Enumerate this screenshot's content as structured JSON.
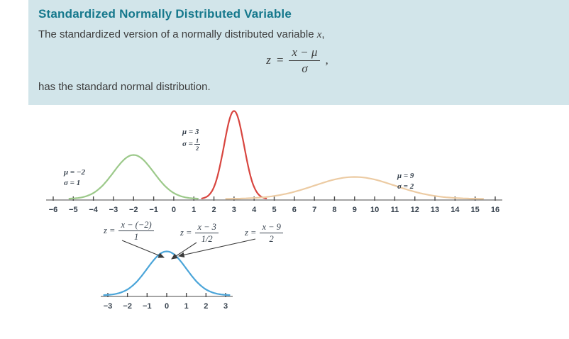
{
  "definition_box": {
    "title": "Standardized Normally Distributed Variable",
    "intro_text": "The standardized version of a normally distributed variable ",
    "intro_var": "x",
    "intro_punct": ",",
    "formula": {
      "lhs": "z",
      "eq": "=",
      "num": "x − μ",
      "den": "σ",
      "punct": ","
    },
    "outro_text": "has the standard normal distribution.",
    "title_color": "#15788c",
    "bg_color": "#d2e5ea"
  },
  "figure": {
    "main_axis": {
      "min": -6,
      "max": 16,
      "tick_labels": [
        "−6",
        "−5",
        "−4",
        "−3",
        "−2",
        "−1",
        "0",
        "1",
        "2",
        "3",
        "4",
        "5",
        "6",
        "7",
        "8",
        "9",
        "10",
        "11",
        "12",
        "13",
        "14",
        "15",
        "16"
      ]
    },
    "standard_axis": {
      "min": -3,
      "max": 3,
      "tick_labels": [
        "−3",
        "−2",
        "−1",
        "0",
        "1",
        "2",
        "3"
      ]
    },
    "curves": [
      {
        "name": "normal-curve-mu-neg2-sigma-1",
        "mu": -2,
        "sigma": 1,
        "color": "#9cc98a",
        "axis": "main"
      },
      {
        "name": "normal-curve-mu-3-sigma-half",
        "mu": 3,
        "sigma": 0.5,
        "color": "#d8453f",
        "axis": "main"
      },
      {
        "name": "normal-curve-mu-9-sigma-2",
        "mu": 9,
        "sigma": 2,
        "color": "#eccba3",
        "axis": "main"
      },
      {
        "name": "standard-normal-curve",
        "mu": 0,
        "sigma": 1,
        "color": "#4ba5d9",
        "axis": "standard"
      }
    ],
    "labels": {
      "green": [
        "μ = −2",
        "σ = 1"
      ],
      "red_mu": "μ = 3",
      "red_sigma_lead": "σ =",
      "red_sigma_num": "1",
      "red_sigma_den": "2",
      "tan": [
        "μ = 9",
        "σ = 2"
      ]
    },
    "z_formulas": [
      {
        "lead": "z =",
        "num": "x − (−2)",
        "den": "1"
      },
      {
        "lead": "z =",
        "num": "x − 3",
        "den": "1/2"
      },
      {
        "lead": "z =",
        "num": "x − 9",
        "den": "2"
      }
    ]
  },
  "chart_data": {
    "type": "line",
    "title": "Standardizing normally distributed variables to the standard normal distribution",
    "curves": [
      {
        "name": "N(μ = −2, σ = 1)",
        "mu": -2,
        "sigma": 1,
        "color": "#9cc98a",
        "axis": "main"
      },
      {
        "name": "N(μ = 3, σ = 1/2)",
        "mu": 3,
        "sigma": 0.5,
        "color": "#d8453f",
        "axis": "main"
      },
      {
        "name": "N(μ = 9, σ = 2)",
        "mu": 9,
        "sigma": 2,
        "color": "#eccba3",
        "axis": "main"
      },
      {
        "name": "standard normal N(0, 1)",
        "mu": 0,
        "sigma": 1,
        "color": "#4ba5d9",
        "axis": "standard"
      }
    ],
    "main_axis_range": [
      -6,
      16
    ],
    "standard_axis_range": [
      -3,
      3
    ],
    "transformations": [
      "z = (x − (−2))/1",
      "z = (x − 3)/(1/2)",
      "z = (x − 9)/2"
    ],
    "grid": false,
    "legend": false
  }
}
